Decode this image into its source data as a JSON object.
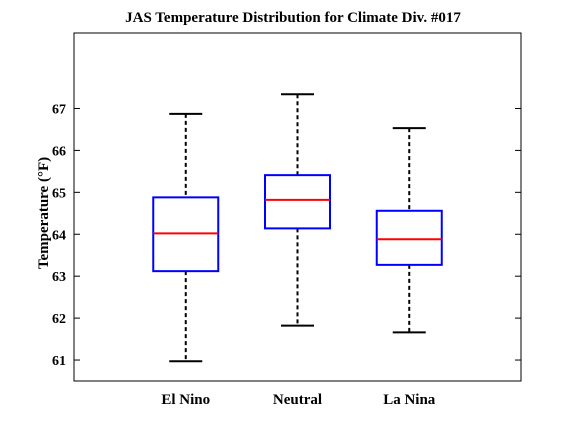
{
  "chart_data": {
    "type": "box",
    "title": "JAS Temperature Distribution for Climate Div. #017",
    "ylabel": "Temperature (°F)",
    "xlabel": "",
    "ylim": [
      60.5,
      68.8
    ],
    "yticks": [
      61,
      62,
      63,
      64,
      65,
      66,
      67
    ],
    "grid": false,
    "categories": [
      "El Nino",
      "Neutral",
      "La Nina"
    ],
    "boxes": [
      {
        "category": "El Nino",
        "min": 60.97,
        "q1": 63.12,
        "median": 64.02,
        "q3": 64.88,
        "max": 66.87
      },
      {
        "category": "Neutral",
        "min": 61.82,
        "q1": 64.14,
        "median": 64.82,
        "q3": 65.41,
        "max": 67.34
      },
      {
        "category": "La Nina",
        "min": 61.66,
        "q1": 63.27,
        "median": 63.88,
        "q3": 64.56,
        "max": 66.53
      }
    ],
    "colors": {
      "box": "#0000ff",
      "median": "#ff0000",
      "whisker": "#000000",
      "axes": "#000000"
    }
  }
}
